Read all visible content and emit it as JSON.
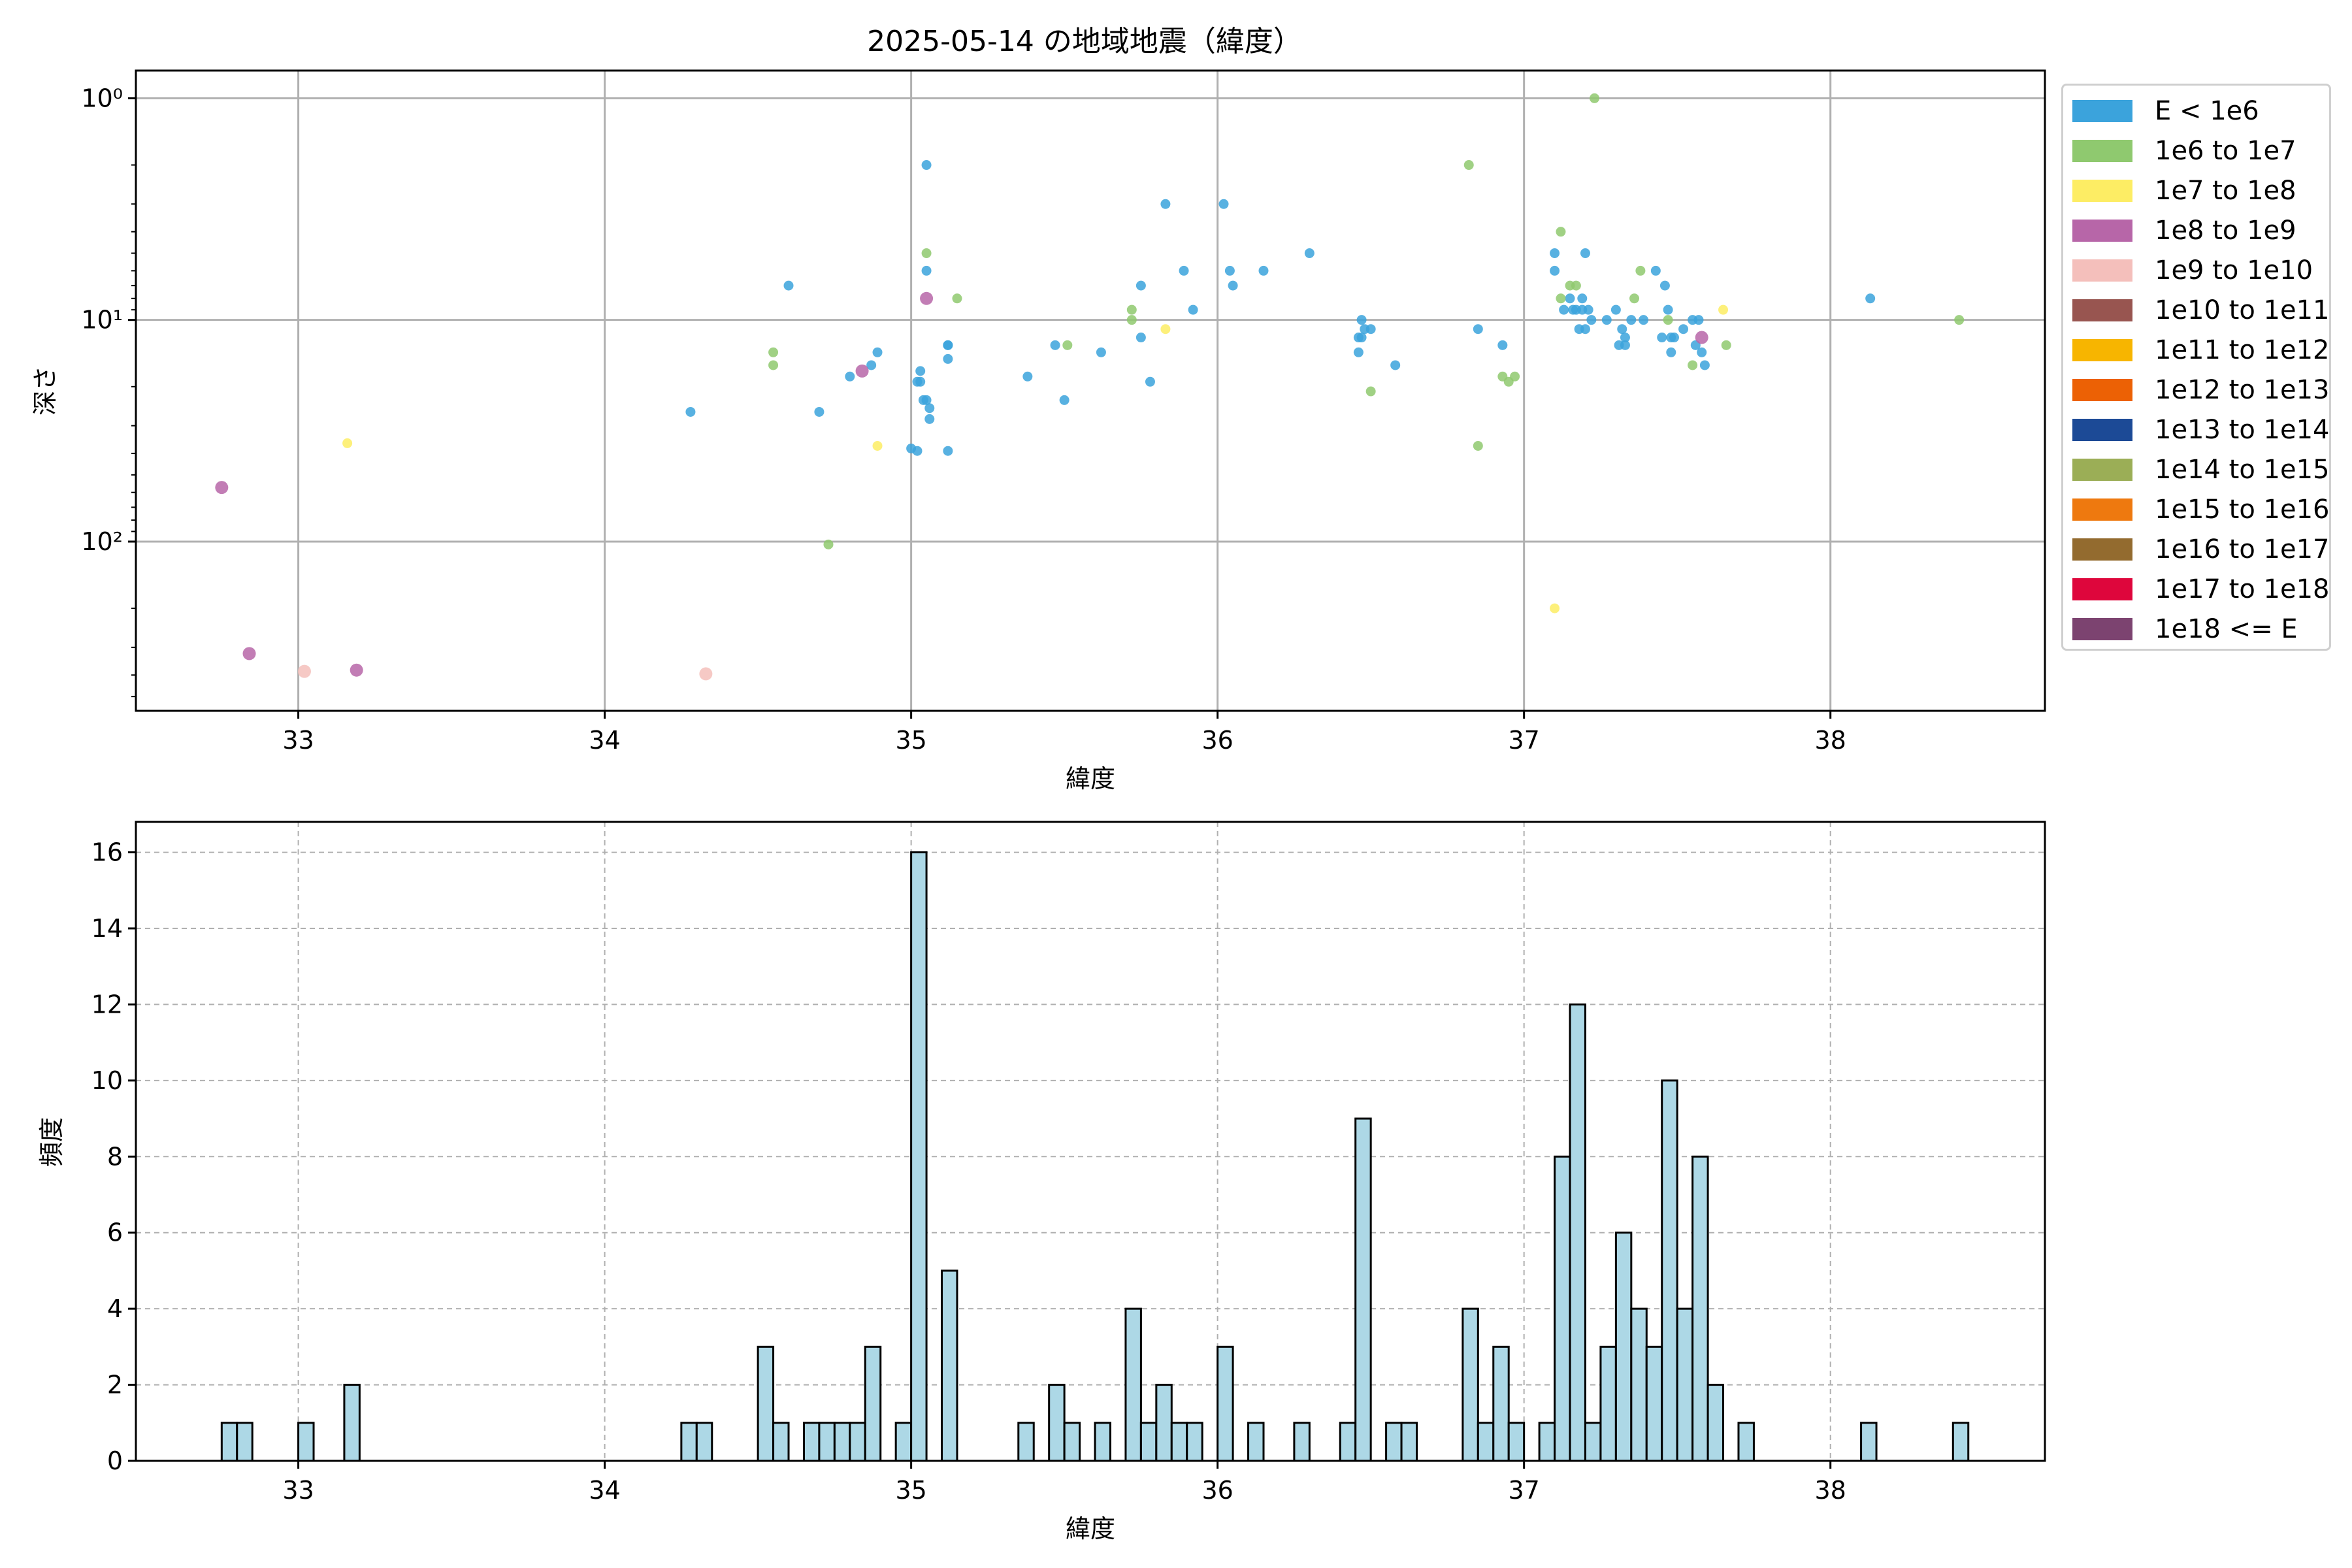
{
  "title": "2025-05-14 の地域地震（緯度）",
  "colors": {
    "E < 1e6": "#3ba3dc",
    "1e6 to 1e7": "#8fc96f",
    "1e7 to 1e8": "#fded64",
    "1e8 to 1e9": "#b766a8",
    "1e9 to 1e10": "#f4bfbb",
    "1e10 to 1e11": "#985550",
    "1e11 to 1e12": "#f7b500",
    "1e12 to 1e13": "#ec6105",
    "1e13 to 1e14": "#1c4a96",
    "1e14 to 1e15": "#9bae56",
    "1e15 to 1e16": "#ee790f",
    "1e16 to 1e17": "#936b2f",
    "1e17 to 1e18": "#de063c",
    "1e18 <= E": "#7c4370",
    "hist_bar": "#add8e6"
  },
  "chart_data": [
    {
      "type": "scatter",
      "xlabel": "緯度",
      "ylabel": "深さ",
      "xlim": [
        32.47,
        38.7
      ],
      "ylim": [
        580,
        0.75
      ],
      "yscale": "log",
      "y_inverted": true,
      "x_ticks": [
        "33",
        "34",
        "35",
        "36",
        "37",
        "38"
      ],
      "y_ticks": [
        {
          "value": 1,
          "label": "10⁰"
        },
        {
          "value": 10,
          "label": "10¹"
        },
        {
          "value": 100,
          "label": "10²"
        }
      ],
      "grid": true,
      "legend": {
        "placement": "outside-right",
        "entries": [
          "E < 1e6",
          "1e6 to 1e7",
          "1e7 to 1e8",
          "1e8 to 1e9",
          "1e9 to 1e10",
          "1e10 to 1e11",
          "1e11 to 1e12",
          "1e12 to 1e13",
          "1e13 to 1e14",
          "1e14 to 1e15",
          "1e15 to 1e16",
          "1e16 to 1e17",
          "1e17 to 1e18",
          "1e18 <= E"
        ]
      },
      "series": [
        {
          "name": "E < 1e6",
          "points": [
            [
              34.28,
              26
            ],
            [
              34.6,
              7
            ],
            [
              34.7,
              26
            ],
            [
              34.8,
              18
            ],
            [
              34.87,
              16
            ],
            [
              34.89,
              14
            ],
            [
              35.0,
              38
            ],
            [
              35.02,
              19
            ],
            [
              35.02,
              39
            ],
            [
              35.03,
              17
            ],
            [
              35.03,
              19
            ],
            [
              35.04,
              23
            ],
            [
              35.05,
              2.0
            ],
            [
              35.05,
              6
            ],
            [
              35.05,
              23
            ],
            [
              35.06,
              25
            ],
            [
              35.06,
              28
            ],
            [
              35.12,
              13
            ],
            [
              35.12,
              13
            ],
            [
              35.12,
              15
            ],
            [
              35.12,
              39
            ],
            [
              35.38,
              18
            ],
            [
              35.47,
              13
            ],
            [
              35.5,
              23
            ],
            [
              35.62,
              14
            ],
            [
              35.75,
              7
            ],
            [
              35.75,
              12
            ],
            [
              35.78,
              19
            ],
            [
              35.83,
              3.0
            ],
            [
              35.89,
              6
            ],
            [
              35.92,
              9
            ],
            [
              36.02,
              3.0
            ],
            [
              36.04,
              6
            ],
            [
              36.05,
              7
            ],
            [
              36.15,
              6
            ],
            [
              36.3,
              5
            ],
            [
              36.46,
              14
            ],
            [
              36.46,
              12
            ],
            [
              36.47,
              10
            ],
            [
              36.47,
              12
            ],
            [
              36.48,
              11
            ],
            [
              36.5,
              11
            ],
            [
              36.58,
              16
            ],
            [
              36.85,
              11
            ],
            [
              36.93,
              13
            ],
            [
              37.1,
              5
            ],
            [
              37.1,
              6
            ],
            [
              37.13,
              9
            ],
            [
              37.15,
              8
            ],
            [
              37.16,
              9
            ],
            [
              37.17,
              9
            ],
            [
              37.18,
              11
            ],
            [
              37.19,
              8
            ],
            [
              37.19,
              9
            ],
            [
              37.2,
              11
            ],
            [
              37.2,
              5
            ],
            [
              37.21,
              9
            ],
            [
              37.22,
              10
            ],
            [
              37.27,
              10
            ],
            [
              37.3,
              9
            ],
            [
              37.31,
              13
            ],
            [
              37.32,
              11
            ],
            [
              37.33,
              12
            ],
            [
              37.33,
              13
            ],
            [
              37.35,
              10
            ],
            [
              37.39,
              10
            ],
            [
              37.43,
              6
            ],
            [
              37.45,
              12
            ],
            [
              37.46,
              7
            ],
            [
              37.47,
              9
            ],
            [
              37.48,
              14
            ],
            [
              37.48,
              12
            ],
            [
              37.49,
              12
            ],
            [
              37.52,
              11
            ],
            [
              37.55,
              10
            ],
            [
              37.56,
              13
            ],
            [
              37.57,
              10
            ],
            [
              37.58,
              14
            ],
            [
              37.59,
              16
            ],
            [
              38.13,
              8
            ]
          ]
        },
        {
          "name": "1e6 to 1e7",
          "points": [
            [
              34.55,
              14
            ],
            [
              34.55,
              16
            ],
            [
              34.73,
              103
            ],
            [
              35.05,
              5
            ],
            [
              35.15,
              8
            ],
            [
              35.51,
              13
            ],
            [
              35.72,
              9
            ],
            [
              35.72,
              10
            ],
            [
              36.5,
              21
            ],
            [
              36.82,
              2.0
            ],
            [
              36.85,
              37
            ],
            [
              36.93,
              18
            ],
            [
              36.95,
              19
            ],
            [
              36.97,
              18
            ],
            [
              37.12,
              4.0
            ],
            [
              37.12,
              8
            ],
            [
              37.15,
              7
            ],
            [
              37.17,
              7
            ],
            [
              37.23,
              1.0
            ],
            [
              37.36,
              8
            ],
            [
              37.38,
              6
            ],
            [
              37.47,
              10
            ],
            [
              37.55,
              16
            ],
            [
              37.66,
              13
            ],
            [
              38.42,
              10
            ]
          ]
        },
        {
          "name": "1e7 to 1e8",
          "points": [
            [
              33.16,
              36
            ],
            [
              34.89,
              37
            ],
            [
              35.83,
              11
            ],
            [
              37.1,
              200
            ],
            [
              37.65,
              9
            ]
          ]
        },
        {
          "name": "1e8 to 1e9",
          "points": [
            [
              32.75,
              57
            ],
            [
              32.84,
              320
            ],
            [
              33.19,
              380
            ],
            [
              34.84,
              17
            ],
            [
              35.05,
              8
            ],
            [
              37.58,
              12
            ]
          ]
        },
        {
          "name": "1e9 to 1e10",
          "points": [
            [
              33.02,
              385
            ],
            [
              34.33,
              395
            ]
          ]
        }
      ]
    },
    {
      "type": "bar",
      "xlabel": "緯度",
      "ylabel": "頻度",
      "xlim": [
        32.47,
        38.7
      ],
      "ylim": [
        0,
        16.8
      ],
      "x_ticks": [
        "33",
        "34",
        "35",
        "36",
        "37",
        "38"
      ],
      "y_ticks": [
        "0",
        "2",
        "4",
        "6",
        "8",
        "10",
        "12",
        "14",
        "16"
      ],
      "grid": true,
      "bin_width": 0.05,
      "bins": [
        [
          32.75,
          1
        ],
        [
          32.8,
          1
        ],
        [
          33.0,
          1
        ],
        [
          33.15,
          2
        ],
        [
          34.25,
          1
        ],
        [
          34.3,
          1
        ],
        [
          34.5,
          3
        ],
        [
          34.55,
          1
        ],
        [
          34.65,
          1
        ],
        [
          34.7,
          1
        ],
        [
          34.75,
          1
        ],
        [
          34.8,
          1
        ],
        [
          34.85,
          3
        ],
        [
          34.95,
          1
        ],
        [
          35.0,
          16
        ],
        [
          35.1,
          5
        ],
        [
          35.35,
          1
        ],
        [
          35.45,
          2
        ],
        [
          35.5,
          1
        ],
        [
          35.6,
          1
        ],
        [
          35.7,
          4
        ],
        [
          35.75,
          1
        ],
        [
          35.8,
          2
        ],
        [
          35.85,
          1
        ],
        [
          35.9,
          1
        ],
        [
          36.0,
          3
        ],
        [
          36.1,
          1
        ],
        [
          36.25,
          1
        ],
        [
          36.4,
          1
        ],
        [
          36.45,
          9
        ],
        [
          36.55,
          1
        ],
        [
          36.6,
          1
        ],
        [
          36.8,
          4
        ],
        [
          36.85,
          1
        ],
        [
          36.9,
          3
        ],
        [
          36.95,
          1
        ],
        [
          37.05,
          1
        ],
        [
          37.1,
          8
        ],
        [
          37.15,
          12
        ],
        [
          37.2,
          1
        ],
        [
          37.25,
          3
        ],
        [
          37.3,
          6
        ],
        [
          37.35,
          4
        ],
        [
          37.4,
          3
        ],
        [
          37.45,
          10
        ],
        [
          37.5,
          4
        ],
        [
          37.55,
          8
        ],
        [
          37.6,
          2
        ],
        [
          37.7,
          1
        ],
        [
          38.1,
          1
        ],
        [
          38.4,
          1
        ]
      ]
    }
  ]
}
